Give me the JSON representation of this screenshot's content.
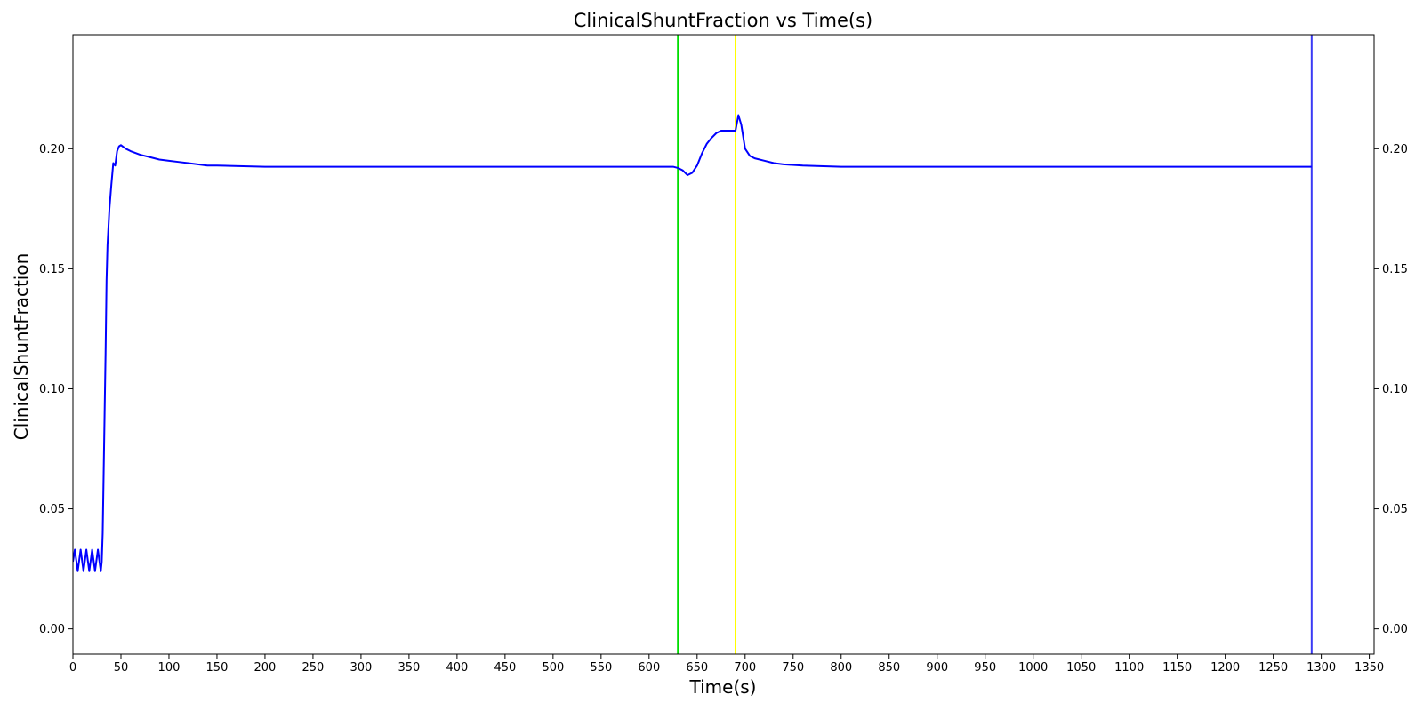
{
  "chart_data": {
    "type": "line",
    "title": "ClinicalShuntFraction vs Time(s)",
    "xlabel": "Time(s)",
    "ylabel": "ClinicalShuntFraction",
    "xlim": [
      0,
      1355
    ],
    "ylim": [
      -0.0105,
      0.2475
    ],
    "x_ticks": [
      0,
      50,
      100,
      150,
      200,
      250,
      300,
      350,
      400,
      450,
      500,
      550,
      600,
      650,
      700,
      750,
      800,
      850,
      900,
      950,
      1000,
      1050,
      1100,
      1150,
      1200,
      1250,
      1300,
      1350
    ],
    "y_ticks": [
      0.0,
      0.05,
      0.1,
      0.15,
      0.2
    ],
    "y_tick_labels": [
      "0.00",
      "0.05",
      "0.10",
      "0.15",
      "0.20"
    ],
    "right_axis_ticks": true,
    "grid": false,
    "series": [
      {
        "color": "#0000ff",
        "x": [
          0,
          2,
          5,
          8,
          11,
          14,
          17,
          20,
          23,
          26,
          29,
          30,
          31,
          32,
          33,
          34,
          35,
          36,
          38,
          40,
          42,
          44,
          46,
          48,
          50,
          55,
          60,
          70,
          80,
          90,
          100,
          110,
          120,
          130,
          140,
          150,
          200,
          250,
          300,
          400,
          500,
          600,
          625,
          630,
          635,
          640,
          645,
          650,
          655,
          660,
          665,
          670,
          675,
          680,
          685,
          690,
          693,
          696,
          700,
          705,
          710,
          720,
          730,
          740,
          760,
          800,
          900,
          1000,
          1100,
          1200,
          1290
        ],
        "y": [
          0.028,
          0.033,
          0.024,
          0.033,
          0.024,
          0.033,
          0.024,
          0.033,
          0.024,
          0.033,
          0.024,
          0.028,
          0.04,
          0.065,
          0.09,
          0.115,
          0.145,
          0.16,
          0.175,
          0.185,
          0.194,
          0.193,
          0.199,
          0.201,
          0.2015,
          0.2,
          0.199,
          0.1975,
          0.1965,
          0.1955,
          0.195,
          0.1945,
          0.194,
          0.1935,
          0.193,
          0.193,
          0.1925,
          0.1925,
          0.1925,
          0.1925,
          0.1925,
          0.1925,
          0.1925,
          0.192,
          0.191,
          0.189,
          0.19,
          0.193,
          0.198,
          0.202,
          0.2045,
          0.2065,
          0.2075,
          0.2075,
          0.2075,
          0.2075,
          0.214,
          0.21,
          0.2,
          0.197,
          0.196,
          0.195,
          0.194,
          0.1935,
          0.193,
          0.1925,
          0.1925,
          0.1925,
          0.1925,
          0.1925,
          0.1925
        ]
      }
    ],
    "vertical_lines": [
      {
        "x": 630,
        "color": "#00dd00"
      },
      {
        "x": 690,
        "color": "#ffff00"
      },
      {
        "x": 1290,
        "color": "#3a3af5"
      }
    ]
  }
}
